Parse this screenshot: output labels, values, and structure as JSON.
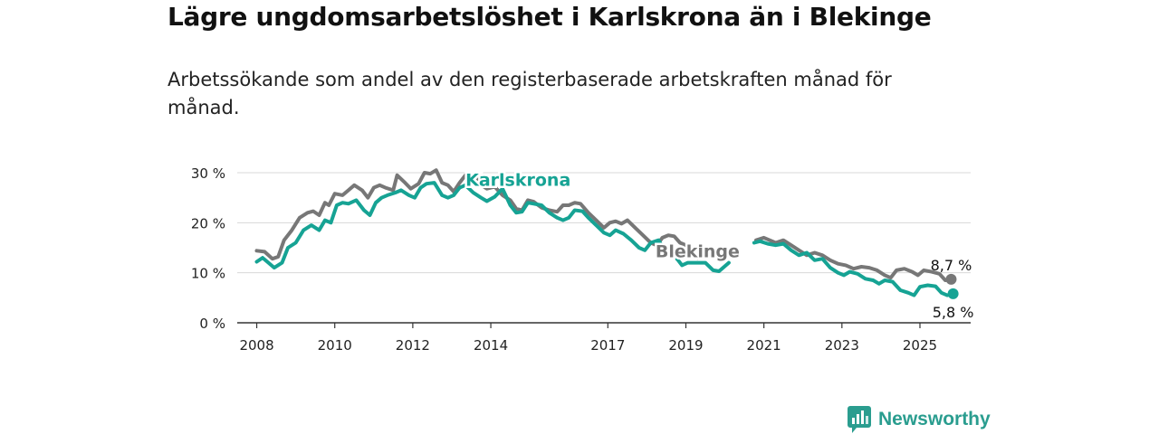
{
  "header": {
    "title": "Lägre ungdomsarbetslöshet i Karlskrona än i Blekinge",
    "subtitle": "Arbetssökande som andel av den registerbaserade arbetskraften månad för månad."
  },
  "brand": {
    "name": "Newsworthy",
    "icon": "bar-chart-logo-icon",
    "color": "#2a9d8f"
  },
  "chart_data": {
    "type": "line",
    "ylim": [
      0,
      30
    ],
    "xlim": [
      2007.5,
      2026.3
    ],
    "y_ticks": [
      {
        "value": 0,
        "label": "0 %"
      },
      {
        "value": 10,
        "label": "10 %"
      },
      {
        "value": 20,
        "label": "20 %"
      },
      {
        "value": 30,
        "label": "30 %"
      }
    ],
    "x_ticks": [
      {
        "value": 2008,
        "label": "2008"
      },
      {
        "value": 2010,
        "label": "2010"
      },
      {
        "value": 2012,
        "label": "2012"
      },
      {
        "value": 2014,
        "label": "2014"
      },
      {
        "value": 2017,
        "label": "2017"
      },
      {
        "value": 2019,
        "label": "2019"
      },
      {
        "value": 2021,
        "label": "2021"
      },
      {
        "value": 2023,
        "label": "2023"
      },
      {
        "value": 2025,
        "label": "2025"
      }
    ],
    "grid": true,
    "legend": "inline",
    "series": [
      {
        "name": "Blekinge",
        "color": "#777777",
        "end_label": "8,7 %",
        "points": [
          [
            2008.0,
            14.4
          ],
          [
            2008.2,
            14.2
          ],
          [
            2008.4,
            12.8
          ],
          [
            2008.55,
            13.2
          ],
          [
            2008.7,
            16.5
          ],
          [
            2008.9,
            18.5
          ],
          [
            2009.1,
            21.0
          ],
          [
            2009.3,
            22.0
          ],
          [
            2009.45,
            22.3
          ],
          [
            2009.6,
            21.5
          ],
          [
            2009.75,
            24.0
          ],
          [
            2009.85,
            23.5
          ],
          [
            2010.0,
            25.8
          ],
          [
            2010.2,
            25.5
          ],
          [
            2010.35,
            26.5
          ],
          [
            2010.5,
            27.5
          ],
          [
            2010.7,
            26.5
          ],
          [
            2010.85,
            25.0
          ],
          [
            2011.0,
            27.0
          ],
          [
            2011.15,
            27.5
          ],
          [
            2011.3,
            27.0
          ],
          [
            2011.5,
            26.5
          ],
          [
            2011.6,
            29.5
          ],
          [
            2011.8,
            28.0
          ],
          [
            2011.95,
            26.8
          ],
          [
            2012.15,
            27.8
          ],
          [
            2012.3,
            30.0
          ],
          [
            2012.45,
            29.8
          ],
          [
            2012.6,
            30.5
          ],
          [
            2012.75,
            28.0
          ],
          [
            2012.9,
            27.5
          ],
          [
            2013.05,
            26.2
          ],
          [
            2013.2,
            28.0
          ],
          [
            2013.35,
            29.5
          ],
          [
            2013.45,
            29.3
          ],
          [
            2013.6,
            29.7
          ],
          [
            2013.75,
            27.5
          ],
          [
            2013.9,
            26.8
          ],
          [
            2014.1,
            27.2
          ],
          [
            2014.3,
            25.5
          ],
          [
            2014.5,
            24.5
          ],
          [
            2014.65,
            22.8
          ],
          [
            2014.8,
            22.5
          ],
          [
            2014.95,
            24.5
          ],
          [
            2015.1,
            24.2
          ],
          [
            2015.3,
            23.0
          ],
          [
            2015.5,
            22.5
          ],
          [
            2015.7,
            22.2
          ],
          [
            2015.85,
            23.5
          ],
          [
            2016.0,
            23.5
          ],
          [
            2016.15,
            24.0
          ],
          [
            2016.3,
            23.8
          ],
          [
            2016.5,
            22.0
          ],
          [
            2016.7,
            20.5
          ],
          [
            2016.9,
            19.0
          ],
          [
            2017.05,
            20.0
          ],
          [
            2017.2,
            20.3
          ],
          [
            2017.35,
            19.8
          ],
          [
            2017.5,
            20.5
          ],
          [
            2017.7,
            19.0
          ],
          [
            2017.9,
            17.5
          ],
          [
            2018.1,
            16.0
          ],
          [
            2018.25,
            15.5
          ],
          [
            2018.4,
            17.0
          ],
          [
            2018.55,
            17.5
          ],
          [
            2018.7,
            17.3
          ],
          [
            2018.85,
            16.0
          ],
          [
            2019.0,
            15.5
          ],
          [
            2019.15,
            14.0
          ],
          [
            2019.3,
            13.0
          ],
          [
            2020.8,
            16.5
          ],
          [
            2021.0,
            17.0
          ],
          [
            2021.15,
            16.5
          ],
          [
            2021.3,
            16.0
          ],
          [
            2021.5,
            16.5
          ],
          [
            2021.7,
            15.5
          ],
          [
            2021.9,
            14.5
          ],
          [
            2022.1,
            13.5
          ],
          [
            2022.3,
            14.0
          ],
          [
            2022.5,
            13.5
          ],
          [
            2022.7,
            12.5
          ],
          [
            2022.9,
            11.8
          ],
          [
            2023.1,
            11.5
          ],
          [
            2023.3,
            10.8
          ],
          [
            2023.5,
            11.2
          ],
          [
            2023.7,
            11.0
          ],
          [
            2023.9,
            10.5
          ],
          [
            2024.1,
            9.5
          ],
          [
            2024.25,
            9.0
          ],
          [
            2024.4,
            10.5
          ],
          [
            2024.6,
            10.8
          ],
          [
            2024.8,
            10.2
          ],
          [
            2024.95,
            9.5
          ],
          [
            2025.1,
            10.5
          ],
          [
            2025.3,
            10.2
          ],
          [
            2025.5,
            9.8
          ],
          [
            2025.65,
            8.5
          ],
          [
            2025.8,
            8.7
          ]
        ]
      },
      {
        "name": "Karlskrona",
        "color": "#16a394",
        "end_label": "5,8 %",
        "points": [
          [
            2008.0,
            12.2
          ],
          [
            2008.15,
            13.0
          ],
          [
            2008.3,
            12.0
          ],
          [
            2008.45,
            11.0
          ],
          [
            2008.65,
            12.0
          ],
          [
            2008.8,
            15.0
          ],
          [
            2009.0,
            16.0
          ],
          [
            2009.2,
            18.5
          ],
          [
            2009.4,
            19.5
          ],
          [
            2009.6,
            18.5
          ],
          [
            2009.75,
            20.5
          ],
          [
            2009.9,
            20.0
          ],
          [
            2010.05,
            23.5
          ],
          [
            2010.2,
            24.0
          ],
          [
            2010.35,
            23.8
          ],
          [
            2010.55,
            24.5
          ],
          [
            2010.75,
            22.5
          ],
          [
            2010.9,
            21.5
          ],
          [
            2011.05,
            24.0
          ],
          [
            2011.2,
            25.0
          ],
          [
            2011.35,
            25.5
          ],
          [
            2011.55,
            26.0
          ],
          [
            2011.7,
            26.5
          ],
          [
            2011.9,
            25.5
          ],
          [
            2012.05,
            25.0
          ],
          [
            2012.2,
            27.0
          ],
          [
            2012.35,
            27.8
          ],
          [
            2012.55,
            28.0
          ],
          [
            2012.75,
            25.5
          ],
          [
            2012.9,
            25.0
          ],
          [
            2013.05,
            25.5
          ],
          [
            2013.2,
            27.0
          ],
          [
            2013.35,
            27.5
          ],
          [
            2013.55,
            26.0
          ],
          [
            2013.75,
            25.0
          ],
          [
            2013.9,
            24.3
          ],
          [
            2014.1,
            25.2
          ],
          [
            2014.3,
            26.8
          ],
          [
            2014.5,
            23.5
          ],
          [
            2014.65,
            22.0
          ],
          [
            2014.8,
            22.2
          ],
          [
            2014.95,
            24.0
          ],
          [
            2015.1,
            23.8
          ],
          [
            2015.3,
            23.5
          ],
          [
            2015.5,
            22.0
          ],
          [
            2015.7,
            21.0
          ],
          [
            2015.85,
            20.5
          ],
          [
            2016.0,
            21.0
          ],
          [
            2016.15,
            22.5
          ],
          [
            2016.35,
            22.3
          ],
          [
            2016.5,
            21.0
          ],
          [
            2016.7,
            19.5
          ],
          [
            2016.9,
            18.0
          ],
          [
            2017.05,
            17.5
          ],
          [
            2017.2,
            18.5
          ],
          [
            2017.4,
            17.8
          ],
          [
            2017.6,
            16.5
          ],
          [
            2017.8,
            15.0
          ],
          [
            2017.95,
            14.5
          ],
          [
            2018.1,
            16.0
          ],
          [
            2018.3,
            16.5
          ],
          [
            2018.5,
            14.0
          ],
          [
            2018.65,
            13.8
          ],
          [
            2018.8,
            12.5
          ],
          [
            2018.9,
            11.5
          ],
          [
            2019.05,
            12.0
          ],
          [
            2019.5,
            12.0
          ],
          [
            2019.7,
            10.5
          ],
          [
            2019.85,
            10.3
          ],
          [
            2020.1,
            12.0
          ],
          [
            2020.75,
            16.0
          ],
          [
            2020.9,
            16.3
          ],
          [
            2021.1,
            15.8
          ],
          [
            2021.3,
            15.5
          ],
          [
            2021.5,
            15.8
          ],
          [
            2021.7,
            14.5
          ],
          [
            2021.9,
            13.5
          ],
          [
            2022.1,
            14.0
          ],
          [
            2022.3,
            12.5
          ],
          [
            2022.5,
            12.8
          ],
          [
            2022.7,
            11.0
          ],
          [
            2022.9,
            10.0
          ],
          [
            2023.05,
            9.5
          ],
          [
            2023.2,
            10.2
          ],
          [
            2023.4,
            9.8
          ],
          [
            2023.6,
            8.8
          ],
          [
            2023.8,
            8.5
          ],
          [
            2023.95,
            7.8
          ],
          [
            2024.1,
            8.5
          ],
          [
            2024.3,
            8.2
          ],
          [
            2024.5,
            6.5
          ],
          [
            2024.7,
            6.0
          ],
          [
            2024.85,
            5.5
          ],
          [
            2025.0,
            7.2
          ],
          [
            2025.2,
            7.5
          ],
          [
            2025.4,
            7.3
          ],
          [
            2025.55,
            6.0
          ],
          [
            2025.7,
            5.5
          ],
          [
            2025.85,
            5.8
          ]
        ]
      }
    ],
    "annotations": [
      {
        "text": "Karlskrona",
        "series": "Karlskrona",
        "x": 2014.7,
        "y": 27.4
      },
      {
        "text": "Blekinge",
        "series": "Blekinge",
        "x": 2019.3,
        "y": 13.1
      }
    ]
  }
}
